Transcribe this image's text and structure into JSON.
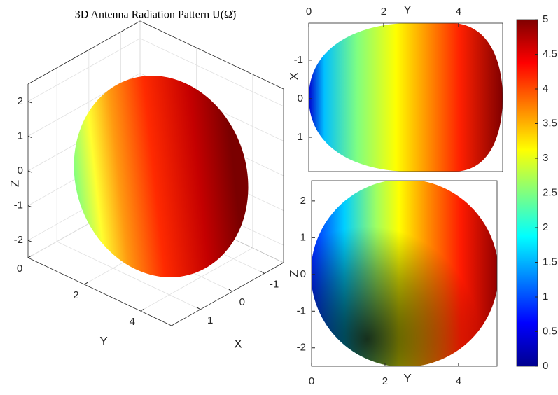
{
  "chart_data": [
    {
      "type": "surface3d",
      "title": "3D Antenna Radiation Pattern U(Ω̃)",
      "xlabel": "X",
      "ylabel": "Y",
      "zlabel": "Z",
      "xlim": [
        -1.6,
        1.9
      ],
      "ylim": [
        0,
        5.1
      ],
      "zlim": [
        -2.5,
        2.5
      ],
      "xticks": [
        -1,
        0,
        1
      ],
      "yticks": [
        0,
        2,
        4
      ],
      "zticks": [
        -2,
        -1,
        0,
        1,
        2
      ],
      "grid": true
    },
    {
      "type": "surface2d",
      "view": "top",
      "xlabel": "Y",
      "ylabel": "X",
      "xlim": [
        0,
        5.18
      ],
      "ylim": [
        -1.96,
        1.89
      ],
      "ydir": "reverse",
      "xaxis_location": "top",
      "xticks": [
        0,
        2,
        4
      ],
      "yticks": [
        -1,
        0,
        1
      ]
    },
    {
      "type": "surface2d",
      "view": "side",
      "xlabel": "Y",
      "ylabel": "Z",
      "xlim": [
        0,
        5.05
      ],
      "ylim": [
        -2.5,
        2.55
      ],
      "ydir": "normal",
      "xaxis_location": "bottom",
      "xticks": [
        0,
        2,
        4
      ],
      "yticks": [
        -2,
        -1,
        0,
        1,
        2
      ]
    },
    {
      "type": "colorbar",
      "colormap": "jet",
      "clim": [
        0,
        5
      ],
      "ticks": [
        0,
        0.5,
        1,
        1.5,
        2,
        2.5,
        3,
        3.5,
        4,
        4.5,
        5
      ]
    }
  ]
}
